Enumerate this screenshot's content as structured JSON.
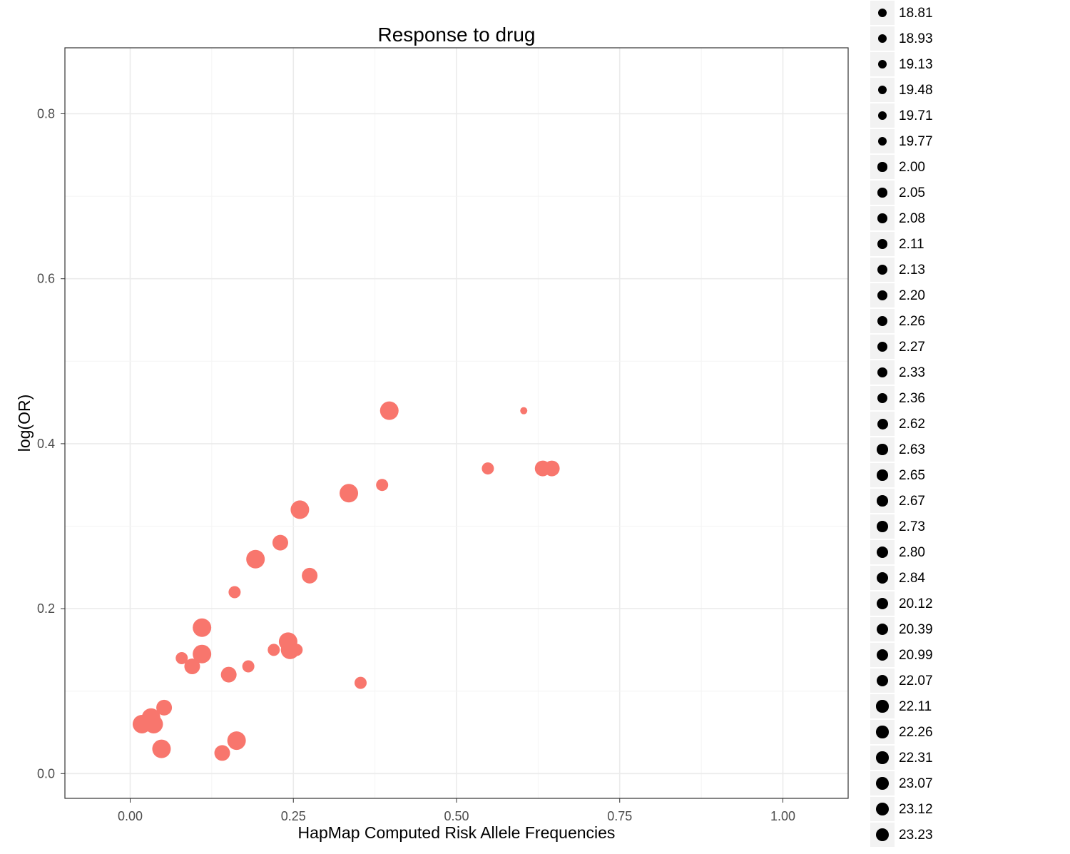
{
  "chart_data": {
    "type": "scatter",
    "title": "Response to drug",
    "xlabel": "HapMap Computed Risk Allele Frequencies",
    "ylabel": "log(OR)",
    "xlim": [
      -0.1,
      1.1
    ],
    "ylim": [
      -0.03,
      0.88
    ],
    "x_ticks": [
      "0.00",
      "0.25",
      "0.50",
      "0.75",
      "1.00"
    ],
    "y_ticks": [
      "0.0",
      "0.2",
      "0.4",
      "0.6",
      "0.8"
    ],
    "grid": true,
    "point_color": "#F8766D",
    "points": [
      {
        "x": 0.397,
        "y": 0.44,
        "size": "large"
      },
      {
        "x": 0.603,
        "y": 0.44,
        "size": "tiny"
      },
      {
        "x": 0.548,
        "y": 0.37,
        "size": "medium"
      },
      {
        "x": 0.632,
        "y": 0.37,
        "size": "medium-large"
      },
      {
        "x": 0.646,
        "y": 0.37,
        "size": "medium-large"
      },
      {
        "x": 0.335,
        "y": 0.34,
        "size": "large"
      },
      {
        "x": 0.386,
        "y": 0.35,
        "size": "medium"
      },
      {
        "x": 0.26,
        "y": 0.32,
        "size": "large"
      },
      {
        "x": 0.23,
        "y": 0.28,
        "size": "medium-large"
      },
      {
        "x": 0.192,
        "y": 0.26,
        "size": "large"
      },
      {
        "x": 0.275,
        "y": 0.24,
        "size": "medium-large"
      },
      {
        "x": 0.16,
        "y": 0.22,
        "size": "medium"
      },
      {
        "x": 0.11,
        "y": 0.177,
        "size": "large"
      },
      {
        "x": 0.11,
        "y": 0.145,
        "size": "large"
      },
      {
        "x": 0.079,
        "y": 0.14,
        "size": "medium"
      },
      {
        "x": 0.095,
        "y": 0.13,
        "size": "medium-large"
      },
      {
        "x": 0.181,
        "y": 0.13,
        "size": "medium"
      },
      {
        "x": 0.151,
        "y": 0.12,
        "size": "medium-large"
      },
      {
        "x": 0.22,
        "y": 0.15,
        "size": "medium"
      },
      {
        "x": 0.255,
        "y": 0.15,
        "size": "medium"
      },
      {
        "x": 0.242,
        "y": 0.16,
        "size": "large"
      },
      {
        "x": 0.245,
        "y": 0.15,
        "size": "large"
      },
      {
        "x": 0.353,
        "y": 0.11,
        "size": "medium"
      },
      {
        "x": 0.052,
        "y": 0.08,
        "size": "medium-large"
      },
      {
        "x": 0.018,
        "y": 0.06,
        "size": "large"
      },
      {
        "x": 0.032,
        "y": 0.068,
        "size": "large"
      },
      {
        "x": 0.036,
        "y": 0.06,
        "size": "large"
      },
      {
        "x": 0.048,
        "y": 0.03,
        "size": "large"
      },
      {
        "x": 0.163,
        "y": 0.04,
        "size": "large"
      },
      {
        "x": 0.141,
        "y": 0.025,
        "size": "medium-large"
      }
    ],
    "legend": {
      "placement": "right",
      "items": [
        "18.81",
        "18.93",
        "19.13",
        "19.48",
        "19.71",
        "19.77",
        "2.00",
        "2.05",
        "2.08",
        "2.11",
        "2.13",
        "2.20",
        "2.26",
        "2.27",
        "2.33",
        "2.36",
        "2.62",
        "2.63",
        "2.65",
        "2.67",
        "2.73",
        "2.80",
        "2.84",
        "20.12",
        "20.39",
        "20.99",
        "22.07",
        "22.11",
        "22.26",
        "22.31",
        "23.07",
        "23.12",
        "23.23"
      ]
    }
  }
}
